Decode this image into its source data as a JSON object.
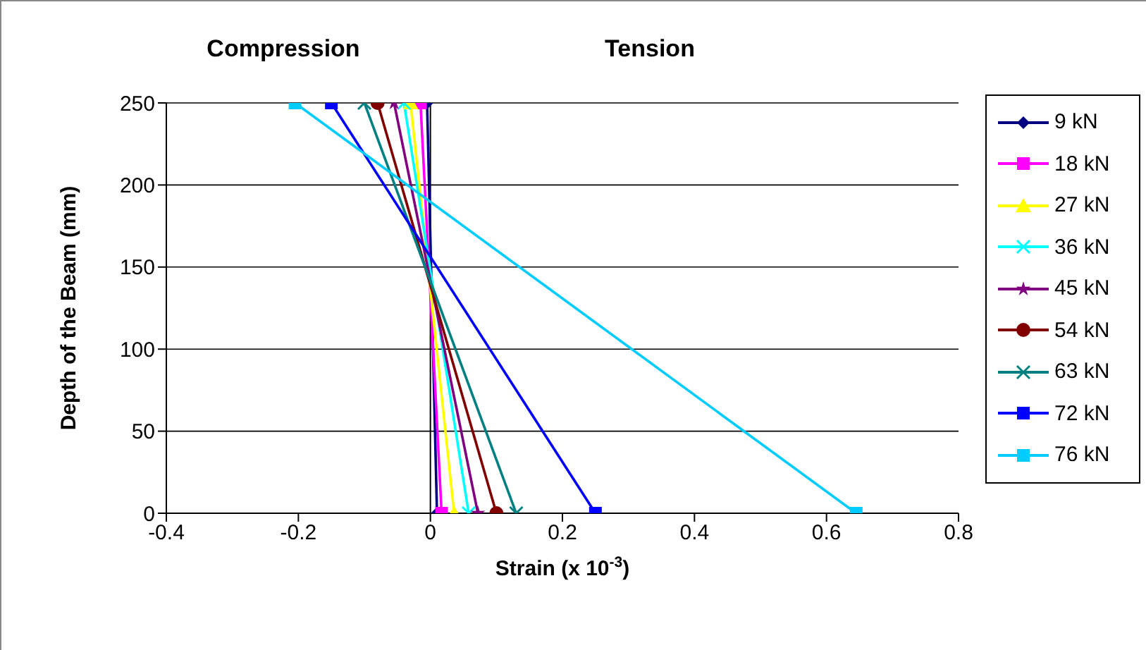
{
  "chart_data": {
    "type": "line",
    "xlabel": "Strain (x 10$^{-3}$)",
    "ylabel": "Depth of the Beam (mm)",
    "annotations": [
      "Compression",
      "Tension"
    ],
    "xlim": [
      -0.4,
      0.8
    ],
    "xticks": [
      -0.4,
      -0.2,
      0,
      0.2,
      0.4,
      0.6,
      0.8
    ],
    "ylim": [
      0,
      250
    ],
    "yticks": [
      0,
      50,
      100,
      150,
      200,
      250
    ],
    "grid": "y",
    "legend": "right",
    "ref_lines": [
      {
        "axis": "x",
        "value": 0,
        "color": "#000000"
      }
    ],
    "series": [
      {
        "name": "9 kN",
        "color": "#000080",
        "marker": "diamond",
        "x": [
          -0.005,
          0.01
        ],
        "values": [
          250,
          0
        ]
      },
      {
        "name": "18 kN",
        "color": "#ff00ff",
        "marker": "square",
        "x": [
          -0.015,
          0.017
        ],
        "values": [
          250,
          0
        ]
      },
      {
        "name": "27 kN",
        "color": "#ffff00",
        "marker": "triangle",
        "x": [
          -0.03,
          0.036
        ],
        "values": [
          250,
          0
        ]
      },
      {
        "name": "36 kN",
        "color": "#00ffff",
        "marker": "cross",
        "x": [
          -0.04,
          0.058
        ],
        "values": [
          250,
          0
        ]
      },
      {
        "name": "45 kN",
        "color": "#800080",
        "marker": "star",
        "x": [
          -0.055,
          0.072
        ],
        "values": [
          250,
          0
        ]
      },
      {
        "name": "54 kN",
        "color": "#800000",
        "marker": "circle",
        "x": [
          -0.08,
          0.1
        ],
        "values": [
          250,
          0
        ]
      },
      {
        "name": "63 kN",
        "color": "#008080",
        "marker": "cross",
        "x": [
          -0.1,
          0.13
        ],
        "values": [
          250,
          0
        ]
      },
      {
        "name": "72 kN",
        "color": "#0000ff",
        "marker": "square",
        "x": [
          -0.15,
          0.25
        ],
        "values": [
          250,
          0
        ]
      },
      {
        "name": "76 kN",
        "color": "#00ccff",
        "marker": "square",
        "x": [
          -0.205,
          0.645
        ],
        "values": [
          250,
          0
        ]
      }
    ]
  }
}
